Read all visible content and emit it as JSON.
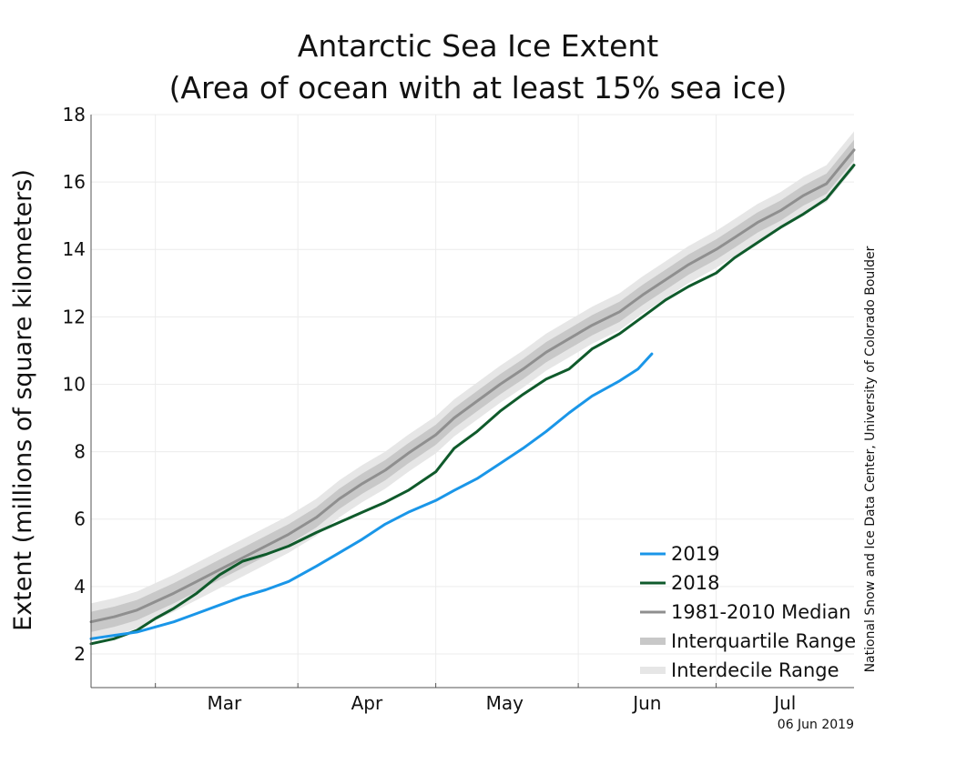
{
  "chart_data": {
    "type": "line",
    "title": [
      "Antarctic Sea Ice Extent",
      "(Area of ocean with at least 15% sea ice)"
    ],
    "ylabel": "Extent (millions of square kilometers)",
    "ylim": [
      1,
      18
    ],
    "yticks": [
      2,
      4,
      6,
      8,
      10,
      12,
      14,
      16,
      18
    ],
    "xlim": [
      "2019-02-15",
      "2019-07-31"
    ],
    "x_month_labels": [
      {
        "label": "Mar",
        "date": "2019-03-16"
      },
      {
        "label": "Apr",
        "date": "2019-04-16"
      },
      {
        "label": "May",
        "date": "2019-05-16"
      },
      {
        "label": "Jun",
        "date": "2019-06-16"
      },
      {
        "label": "Jul",
        "date": "2019-07-16"
      }
    ],
    "x_tick_marks": [
      "2019-03-01",
      "2019-04-01",
      "2019-05-01",
      "2019-06-01",
      "2019-07-01"
    ],
    "grid": true,
    "legend_position": "bottom-right",
    "colors": {
      "2019": "#1a96e8",
      "2018": "#0f5a2b",
      "median": "#8f8f8f",
      "iqr": "#c8c8c8",
      "idr": "#e6e6e6",
      "grid": "#ececec",
      "axis": "#555555"
    },
    "series": [
      {
        "name": "2019",
        "points": [
          [
            "2019-02-15",
            2.45
          ],
          [
            "2019-02-20",
            2.55
          ],
          [
            "2019-02-25",
            2.65
          ],
          [
            "2019-03-01",
            2.8
          ],
          [
            "2019-03-05",
            2.95
          ],
          [
            "2019-03-10",
            3.2
          ],
          [
            "2019-03-15",
            3.45
          ],
          [
            "2019-03-20",
            3.7
          ],
          [
            "2019-03-25",
            3.9
          ],
          [
            "2019-03-30",
            4.15
          ],
          [
            "2019-04-05",
            4.6
          ],
          [
            "2019-04-10",
            5.0
          ],
          [
            "2019-04-15",
            5.4
          ],
          [
            "2019-04-20",
            5.85
          ],
          [
            "2019-04-25",
            6.2
          ],
          [
            "2019-05-01",
            6.55
          ],
          [
            "2019-05-05",
            6.85
          ],
          [
            "2019-05-10",
            7.2
          ],
          [
            "2019-05-15",
            7.65
          ],
          [
            "2019-05-20",
            8.1
          ],
          [
            "2019-05-25",
            8.6
          ],
          [
            "2019-05-30",
            9.15
          ],
          [
            "2019-06-04",
            9.65
          ],
          [
            "2019-06-10",
            10.1
          ],
          [
            "2019-06-14",
            10.45
          ],
          [
            "2019-06-17",
            10.9
          ]
        ]
      },
      {
        "name": "2018",
        "points": [
          [
            "2019-02-15",
            2.3
          ],
          [
            "2019-02-20",
            2.45
          ],
          [
            "2019-02-25",
            2.7
          ],
          [
            "2019-03-01",
            3.05
          ],
          [
            "2019-03-05",
            3.35
          ],
          [
            "2019-03-10",
            3.8
          ],
          [
            "2019-03-15",
            4.35
          ],
          [
            "2019-03-20",
            4.75
          ],
          [
            "2019-03-25",
            4.95
          ],
          [
            "2019-03-30",
            5.2
          ],
          [
            "2019-04-05",
            5.6
          ],
          [
            "2019-04-10",
            5.9
          ],
          [
            "2019-04-15",
            6.2
          ],
          [
            "2019-04-20",
            6.5
          ],
          [
            "2019-04-25",
            6.85
          ],
          [
            "2019-05-01",
            7.4
          ],
          [
            "2019-05-05",
            8.1
          ],
          [
            "2019-05-10",
            8.6
          ],
          [
            "2019-05-15",
            9.2
          ],
          [
            "2019-05-20",
            9.7
          ],
          [
            "2019-05-25",
            10.15
          ],
          [
            "2019-05-30",
            10.45
          ],
          [
            "2019-06-04",
            11.05
          ],
          [
            "2019-06-10",
            11.5
          ],
          [
            "2019-06-15",
            12.0
          ],
          [
            "2019-06-20",
            12.5
          ],
          [
            "2019-06-25",
            12.9
          ],
          [
            "2019-07-01",
            13.3
          ],
          [
            "2019-07-05",
            13.75
          ],
          [
            "2019-07-10",
            14.2
          ],
          [
            "2019-07-15",
            14.65
          ],
          [
            "2019-07-20",
            15.05
          ],
          [
            "2019-07-25",
            15.5
          ],
          [
            "2019-07-31",
            16.5
          ]
        ]
      },
      {
        "name": "1981-2010 Median",
        "points": [
          [
            "2019-02-15",
            2.95
          ],
          [
            "2019-02-20",
            3.1
          ],
          [
            "2019-02-25",
            3.3
          ],
          [
            "2019-03-01",
            3.55
          ],
          [
            "2019-03-05",
            3.8
          ],
          [
            "2019-03-10",
            4.15
          ],
          [
            "2019-03-15",
            4.5
          ],
          [
            "2019-03-20",
            4.85
          ],
          [
            "2019-03-25",
            5.2
          ],
          [
            "2019-03-30",
            5.55
          ],
          [
            "2019-04-05",
            6.05
          ],
          [
            "2019-04-10",
            6.6
          ],
          [
            "2019-04-15",
            7.05
          ],
          [
            "2019-04-20",
            7.45
          ],
          [
            "2019-04-25",
            7.95
          ],
          [
            "2019-05-01",
            8.5
          ],
          [
            "2019-05-05",
            9.0
          ],
          [
            "2019-05-10",
            9.5
          ],
          [
            "2019-05-15",
            10.0
          ],
          [
            "2019-05-20",
            10.45
          ],
          [
            "2019-05-25",
            10.95
          ],
          [
            "2019-05-30",
            11.35
          ],
          [
            "2019-06-04",
            11.75
          ],
          [
            "2019-06-10",
            12.15
          ],
          [
            "2019-06-15",
            12.65
          ],
          [
            "2019-06-20",
            13.1
          ],
          [
            "2019-06-25",
            13.55
          ],
          [
            "2019-07-01",
            14.0
          ],
          [
            "2019-07-05",
            14.35
          ],
          [
            "2019-07-10",
            14.8
          ],
          [
            "2019-07-15",
            15.15
          ],
          [
            "2019-07-20",
            15.6
          ],
          [
            "2019-07-25",
            15.95
          ],
          [
            "2019-07-31",
            16.95
          ]
        ]
      }
    ],
    "ranges": [
      {
        "name": "Interdecile Range",
        "width_above": 0.55,
        "width_below": 0.55
      },
      {
        "name": "Interquartile Range",
        "width_above": 0.3,
        "width_below": 0.3
      }
    ],
    "legend": [
      {
        "label": "2019",
        "style": "line",
        "color_key": "2019"
      },
      {
        "label": "2018",
        "style": "line",
        "color_key": "2018"
      },
      {
        "label": "1981-2010 Median",
        "style": "line",
        "color_key": "median"
      },
      {
        "label": "Interquartile Range",
        "style": "band",
        "color_key": "iqr"
      },
      {
        "label": "Interdecile Range",
        "style": "band",
        "color_key": "idr"
      }
    ]
  },
  "credit": "National Snow and Ice Data Center, University of Colorado Boulder",
  "date_stamp": "06 Jun 2019"
}
